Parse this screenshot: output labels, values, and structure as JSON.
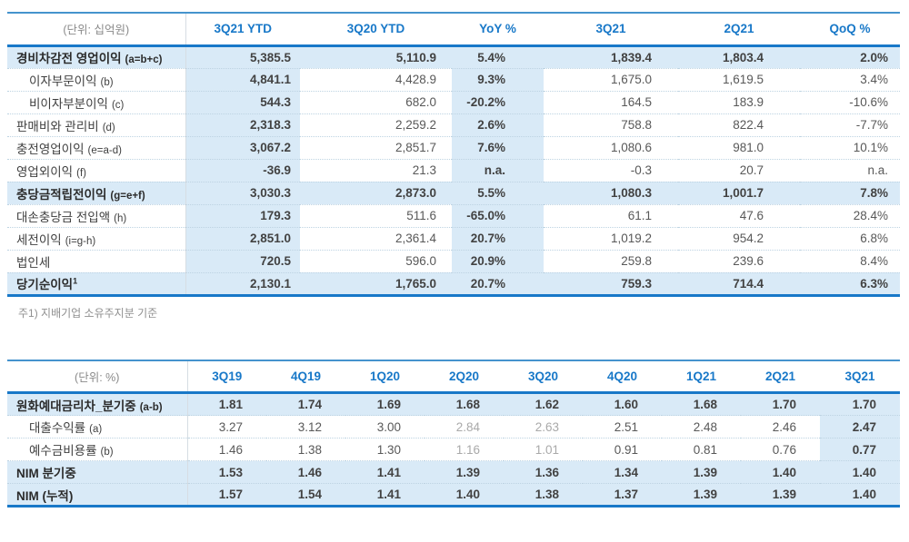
{
  "colors": {
    "header_blue": "#1878c8",
    "top_border_blue": "#4593cd",
    "highlight_bg": "#d9eaf7"
  },
  "table1": {
    "unit_label": "(단위: 십억원)",
    "columns": [
      "3Q21 YTD",
      "3Q20 YTD",
      "YoY %",
      "3Q21",
      "2Q21",
      "QoQ %"
    ],
    "highlight_columns": [
      0,
      2
    ],
    "rows": [
      {
        "label": "경비차감전 영업이익",
        "formula": "(a=b+c)",
        "emphasis": true,
        "values": [
          "5,385.5",
          "5,110.9",
          "5.4%",
          "1,839.4",
          "1,803.4",
          "2.0%"
        ]
      },
      {
        "label": "이자부문이익",
        "formula": "(b)",
        "indent": true,
        "values": [
          "4,841.1",
          "4,428.9",
          "9.3%",
          "1,675.0",
          "1,619.5",
          "3.4%"
        ]
      },
      {
        "label": "비이자부분이익",
        "formula": "(c)",
        "indent": true,
        "values": [
          "544.3",
          "682.0",
          "-20.2%",
          "164.5",
          "183.9",
          "-10.6%"
        ]
      },
      {
        "label": "판매비와 관리비",
        "formula": "(d)",
        "values": [
          "2,318.3",
          "2,259.2",
          "2.6%",
          "758.8",
          "822.4",
          "-7.7%"
        ]
      },
      {
        "label": "충전영업이익",
        "formula": "(e=a-d)",
        "values": [
          "3,067.2",
          "2,851.7",
          "7.6%",
          "1,080.6",
          "981.0",
          "10.1%"
        ]
      },
      {
        "label": "영업외이익",
        "formula": "(f)",
        "values": [
          "-36.9",
          "21.3",
          "n.a.",
          "-0.3",
          "20.7",
          "n.a."
        ]
      },
      {
        "label": "충당금적립전이익",
        "formula": "(g=e+f)",
        "emphasis": true,
        "values": [
          "3,030.3",
          "2,873.0",
          "5.5%",
          "1,080.3",
          "1,001.7",
          "7.8%"
        ]
      },
      {
        "label": "대손충당금 전입액",
        "formula": "(h)",
        "values": [
          "179.3",
          "511.6",
          "-65.0%",
          "61.1",
          "47.6",
          "28.4%"
        ]
      },
      {
        "label": "세전이익",
        "formula": "(i=g-h)",
        "values": [
          "2,851.0",
          "2,361.4",
          "20.7%",
          "1,019.2",
          "954.2",
          "6.8%"
        ]
      },
      {
        "label": "법인세",
        "formula": "",
        "values": [
          "720.5",
          "596.0",
          "20.9%",
          "259.8",
          "239.6",
          "8.4%"
        ]
      },
      {
        "label": "당기순이익",
        "superscript": "1",
        "formula": "",
        "emphasis": true,
        "values": [
          "2,130.1",
          "1,765.0",
          "20.7%",
          "759.3",
          "714.4",
          "6.3%"
        ]
      }
    ],
    "footnote": "주1) 지배기업 소유주지분 기준"
  },
  "table2": {
    "unit_label": "(단위: %)",
    "columns": [
      "3Q19",
      "4Q19",
      "1Q20",
      "2Q20",
      "3Q20",
      "4Q20",
      "1Q21",
      "2Q21",
      "3Q21"
    ],
    "highlight_columns": [
      8
    ],
    "rows": [
      {
        "label": "원화예대금리차_분기중",
        "formula": "(a-b)",
        "emphasis": true,
        "values": [
          "1.81",
          "1.74",
          "1.69",
          "1.68",
          "1.62",
          "1.60",
          "1.68",
          "1.70",
          "1.70"
        ]
      },
      {
        "label": "대출수익률",
        "formula": "(a)",
        "indent": true,
        "faded": [
          3,
          4
        ],
        "values": [
          "3.27",
          "3.12",
          "3.00",
          "2.84",
          "2.63",
          "2.51",
          "2.48",
          "2.46",
          "2.47"
        ]
      },
      {
        "label": "예수금비용률",
        "formula": "(b)",
        "indent": true,
        "faded": [
          3,
          4
        ],
        "values": [
          "1.46",
          "1.38",
          "1.30",
          "1.16",
          "1.01",
          "0.91",
          "0.81",
          "0.76",
          "0.77"
        ]
      },
      {
        "label": "NIM 분기중",
        "formula": "",
        "emphasis": true,
        "values": [
          "1.53",
          "1.46",
          "1.41",
          "1.39",
          "1.36",
          "1.34",
          "1.39",
          "1.40",
          "1.40"
        ]
      },
      {
        "label": "NIM (누적)",
        "formula": "",
        "emphasis": true,
        "values": [
          "1.57",
          "1.54",
          "1.41",
          "1.40",
          "1.38",
          "1.37",
          "1.39",
          "1.39",
          "1.40"
        ]
      }
    ]
  }
}
